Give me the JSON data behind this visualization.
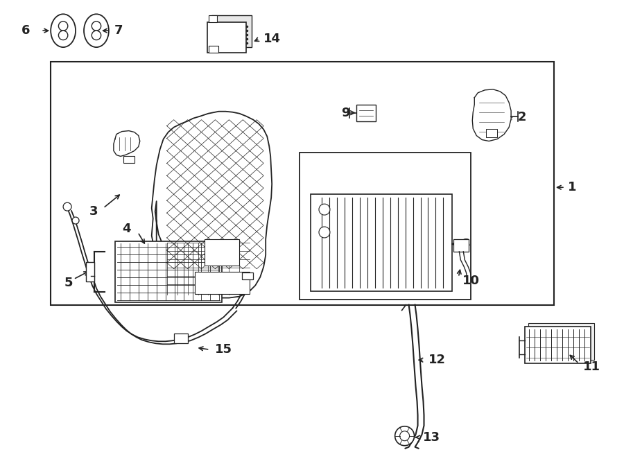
{
  "bg_color": "#ffffff",
  "line_color": "#222222",
  "figsize": [
    9.0,
    6.62
  ],
  "dpi": 100
}
